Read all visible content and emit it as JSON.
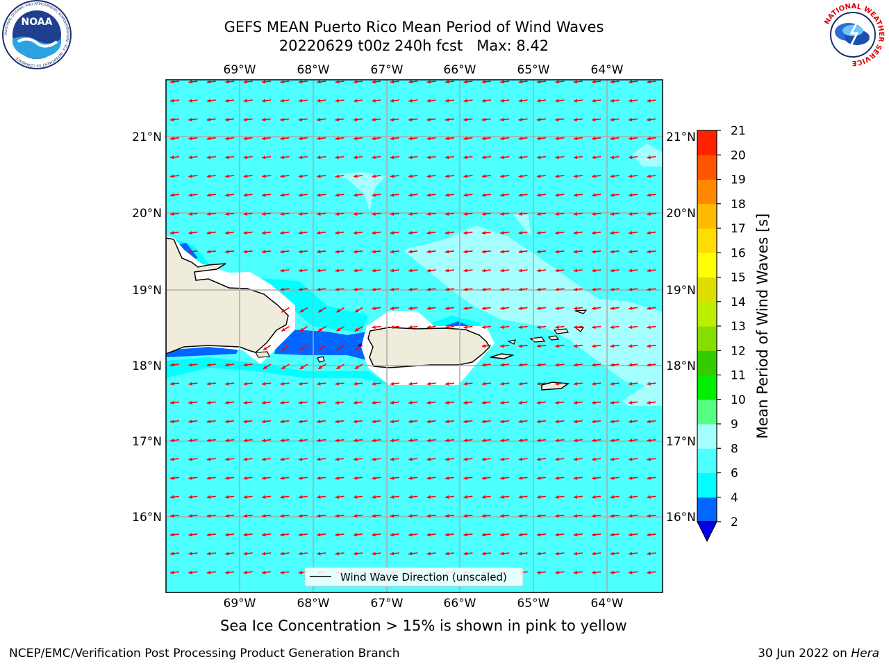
{
  "header": {
    "title_line1": "GEFS MEAN Puerto Rico Mean Period of Wind Waves",
    "title_line2": "20220629 t00z 240h fcst   Max: 8.42"
  },
  "logos": {
    "left": {
      "text": "NOAA",
      "ring_text": "NATIONAL OCEANIC AND ATMOSPHERIC ADMINISTRATION · U.S. DEPARTMENT OF COMMERCE"
    },
    "right": {
      "ring_text": "NATIONAL WEATHER SERVICE"
    }
  },
  "map": {
    "lon_labels": [
      "69°W",
      "68°W",
      "67°W",
      "66°W",
      "65°W",
      "64°W"
    ],
    "lat_labels": [
      "21°N",
      "20°N",
      "19°N",
      "18°N",
      "17°N",
      "16°N"
    ],
    "background_color": "#4dffff",
    "arrow_color": "#ff0000",
    "legend_label": "Wind Wave Direction (unscaled)"
  },
  "colorbar": {
    "title": "Mean Period of Wind Waves [s]",
    "ticks": [
      "2",
      "4",
      "6",
      "8",
      "9",
      "10",
      "11",
      "12",
      "13",
      "14",
      "15",
      "16",
      "17",
      "18",
      "19",
      "20",
      "21"
    ],
    "colors": [
      "#0066ff",
      "#00ffff",
      "#4dffff",
      "#a6ffff",
      "#55ff80",
      "#00ee00",
      "#33cc00",
      "#88dd00",
      "#bbee00",
      "#dddd00",
      "#ffff00",
      "#ffdd00",
      "#ffbb00",
      "#ff8800",
      "#ff5500",
      "#ff2200",
      "#ff0000"
    ],
    "under_color": "#0000ee"
  },
  "caption": "Sea Ice Concentration > 15% is shown in pink to yellow",
  "footer": {
    "left": "NCEP/EMC/Verification Post Processing Product Generation Branch",
    "right_prefix": "30 Jun 2022 on ",
    "right_machine": "Hera"
  }
}
